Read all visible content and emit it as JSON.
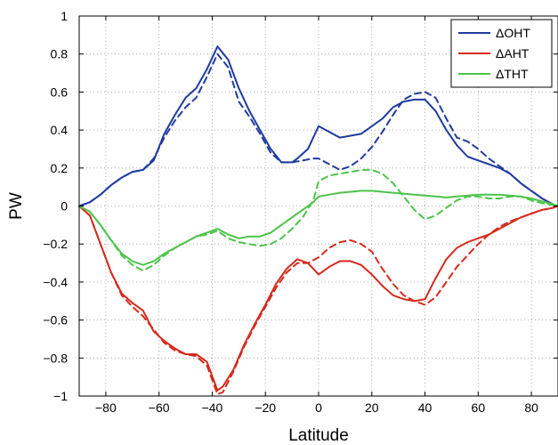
{
  "chart_data": {
    "type": "line",
    "title": "",
    "xlabel": "Latitude",
    "ylabel": "PW",
    "xlim": [
      -90,
      90
    ],
    "ylim": [
      -1,
      1
    ],
    "xticks": [
      -80,
      -60,
      -40,
      -20,
      0,
      20,
      40,
      60,
      80
    ],
    "yticks": [
      -1,
      -0.8,
      -0.6,
      -0.4,
      -0.2,
      0,
      0.2,
      0.4,
      0.6,
      0.8,
      1
    ],
    "xtick_labels": [
      "−80",
      "−60",
      "−40",
      "−20",
      "0",
      "20",
      "40",
      "60",
      "80"
    ],
    "ytick_labels": [
      "−1",
      "−0.8",
      "−0.6",
      "−0.4",
      "−0.2",
      "0",
      "0.2",
      "0.4",
      "0.6",
      "0.8",
      "1"
    ],
    "grid": true,
    "legend_position": "top-right",
    "legend": [
      {
        "label": "ΔOHT",
        "color": "#1f3b9e"
      },
      {
        "label": "ΔAHT",
        "color": "#d62a1e"
      },
      {
        "label": "ΔTHT",
        "color": "#4cc44a"
      }
    ],
    "series": [
      {
        "key": "OHT",
        "style": "solid",
        "color": "#1f3b9e",
        "x": [
          -90,
          -86,
          -82,
          -78,
          -74,
          -70,
          -66,
          -62,
          -58,
          -54,
          -50,
          -46,
          -42,
          -38,
          -34,
          -30,
          -26,
          -22,
          -18,
          -14,
          -10,
          -8,
          -4,
          -2,
          0,
          4,
          8,
          12,
          16,
          20,
          24,
          28,
          32,
          36,
          40,
          44,
          48,
          52,
          56,
          60,
          64,
          68,
          72,
          76,
          80,
          84,
          88,
          90
        ],
        "y": [
          0.0,
          0.02,
          0.06,
          0.11,
          0.15,
          0.18,
          0.19,
          0.24,
          0.38,
          0.48,
          0.57,
          0.62,
          0.72,
          0.84,
          0.77,
          0.62,
          0.5,
          0.4,
          0.3,
          0.23,
          0.23,
          0.25,
          0.3,
          0.36,
          0.42,
          0.39,
          0.36,
          0.37,
          0.38,
          0.42,
          0.46,
          0.52,
          0.55,
          0.56,
          0.56,
          0.5,
          0.4,
          0.32,
          0.26,
          0.24,
          0.22,
          0.2,
          0.17,
          0.12,
          0.08,
          0.04,
          0.01,
          0.0
        ]
      },
      {
        "key": "OHT",
        "style": "dashed",
        "color": "#1f3b9e",
        "x": [
          -90,
          -86,
          -82,
          -78,
          -74,
          -70,
          -66,
          -62,
          -58,
          -54,
          -50,
          -46,
          -42,
          -38,
          -34,
          -30,
          -26,
          -22,
          -18,
          -14,
          -10,
          -6,
          -2,
          0,
          4,
          8,
          12,
          16,
          20,
          24,
          28,
          32,
          36,
          40,
          44,
          48,
          52,
          56,
          60,
          64,
          68,
          72,
          76,
          80,
          84,
          88,
          90
        ],
        "y": [
          0.0,
          0.02,
          0.06,
          0.11,
          0.15,
          0.18,
          0.19,
          0.25,
          0.36,
          0.45,
          0.52,
          0.57,
          0.68,
          0.8,
          0.73,
          0.55,
          0.47,
          0.38,
          0.28,
          0.23,
          0.23,
          0.24,
          0.25,
          0.25,
          0.22,
          0.19,
          0.21,
          0.25,
          0.31,
          0.39,
          0.48,
          0.56,
          0.59,
          0.6,
          0.57,
          0.46,
          0.36,
          0.34,
          0.3,
          0.25,
          0.21,
          0.17,
          0.12,
          0.08,
          0.04,
          0.01,
          0.0
        ]
      },
      {
        "key": "AHT",
        "style": "solid",
        "color": "#d62a1e",
        "x": [
          -90,
          -86,
          -82,
          -78,
          -74,
          -70,
          -66,
          -62,
          -58,
          -54,
          -50,
          -46,
          -42,
          -38,
          -36,
          -32,
          -28,
          -24,
          -20,
          -16,
          -12,
          -8,
          -4,
          0,
          4,
          8,
          12,
          16,
          20,
          24,
          28,
          32,
          36,
          40,
          44,
          48,
          52,
          56,
          60,
          64,
          68,
          72,
          76,
          80,
          84,
          88,
          90
        ],
        "y": [
          0.0,
          -0.05,
          -0.2,
          -0.35,
          -0.46,
          -0.51,
          -0.55,
          -0.66,
          -0.71,
          -0.75,
          -0.78,
          -0.78,
          -0.82,
          -0.97,
          -0.95,
          -0.86,
          -0.73,
          -0.62,
          -0.52,
          -0.41,
          -0.33,
          -0.28,
          -0.3,
          -0.36,
          -0.32,
          -0.29,
          -0.29,
          -0.31,
          -0.36,
          -0.42,
          -0.47,
          -0.49,
          -0.5,
          -0.49,
          -0.38,
          -0.28,
          -0.22,
          -0.19,
          -0.17,
          -0.15,
          -0.12,
          -0.09,
          -0.06,
          -0.04,
          -0.02,
          -0.01,
          0.0
        ]
      },
      {
        "key": "AHT",
        "style": "dashed",
        "color": "#d62a1e",
        "x": [
          -90,
          -86,
          -82,
          -78,
          -74,
          -70,
          -66,
          -62,
          -58,
          -54,
          -50,
          -46,
          -42,
          -38,
          -36,
          -32,
          -28,
          -24,
          -20,
          -16,
          -12,
          -8,
          -4,
          0,
          4,
          8,
          12,
          16,
          20,
          24,
          28,
          32,
          36,
          40,
          44,
          48,
          52,
          56,
          60,
          64,
          68,
          72,
          76,
          80,
          84,
          88,
          90
        ],
        "y": [
          0.0,
          -0.05,
          -0.2,
          -0.35,
          -0.47,
          -0.53,
          -0.58,
          -0.65,
          -0.72,
          -0.76,
          -0.78,
          -0.79,
          -0.84,
          -0.99,
          -0.98,
          -0.87,
          -0.74,
          -0.63,
          -0.53,
          -0.43,
          -0.35,
          -0.3,
          -0.3,
          -0.27,
          -0.22,
          -0.19,
          -0.18,
          -0.2,
          -0.24,
          -0.33,
          -0.41,
          -0.47,
          -0.5,
          -0.52,
          -0.48,
          -0.4,
          -0.32,
          -0.26,
          -0.2,
          -0.15,
          -0.11,
          -0.08,
          -0.06,
          -0.04,
          -0.02,
          -0.01,
          0.0
        ]
      },
      {
        "key": "THT",
        "style": "solid",
        "color": "#4cc44a",
        "x": [
          -90,
          -86,
          -82,
          -78,
          -74,
          -70,
          -66,
          -62,
          -58,
          -54,
          -50,
          -46,
          -42,
          -38,
          -34,
          -30,
          -26,
          -22,
          -18,
          -14,
          -10,
          -6,
          -2,
          0,
          4,
          8,
          12,
          16,
          20,
          24,
          28,
          32,
          36,
          40,
          44,
          48,
          52,
          56,
          60,
          64,
          68,
          72,
          76,
          80,
          84,
          88,
          90
        ],
        "y": [
          0.0,
          -0.03,
          -0.1,
          -0.18,
          -0.25,
          -0.29,
          -0.31,
          -0.29,
          -0.25,
          -0.22,
          -0.19,
          -0.16,
          -0.14,
          -0.12,
          -0.15,
          -0.17,
          -0.16,
          -0.16,
          -0.14,
          -0.1,
          -0.06,
          -0.02,
          0.02,
          0.05,
          0.06,
          0.07,
          0.075,
          0.08,
          0.08,
          0.075,
          0.07,
          0.065,
          0.06,
          0.055,
          0.05,
          0.045,
          0.05,
          0.055,
          0.06,
          0.06,
          0.06,
          0.055,
          0.05,
          0.04,
          0.025,
          0.01,
          0.0
        ]
      },
      {
        "key": "THT",
        "style": "dashed",
        "color": "#4cc44a",
        "x": [
          -90,
          -86,
          -82,
          -78,
          -74,
          -70,
          -66,
          -62,
          -58,
          -54,
          -50,
          -46,
          -42,
          -38,
          -34,
          -30,
          -26,
          -22,
          -18,
          -14,
          -10,
          -6,
          -2,
          0,
          4,
          8,
          12,
          16,
          20,
          24,
          28,
          32,
          36,
          40,
          44,
          48,
          52,
          56,
          60,
          64,
          68,
          72,
          76,
          80,
          84,
          88,
          90
        ],
        "y": [
          0.0,
          -0.03,
          -0.1,
          -0.18,
          -0.26,
          -0.31,
          -0.34,
          -0.31,
          -0.26,
          -0.22,
          -0.19,
          -0.16,
          -0.15,
          -0.13,
          -0.17,
          -0.19,
          -0.2,
          -0.21,
          -0.2,
          -0.17,
          -0.12,
          -0.06,
          0.03,
          0.13,
          0.16,
          0.17,
          0.18,
          0.19,
          0.19,
          0.17,
          0.12,
          0.05,
          -0.02,
          -0.07,
          -0.05,
          -0.01,
          0.03,
          0.05,
          0.05,
          0.04,
          0.04,
          0.05,
          0.05,
          0.03,
          0.015,
          0.005,
          0.0
        ]
      }
    ]
  }
}
